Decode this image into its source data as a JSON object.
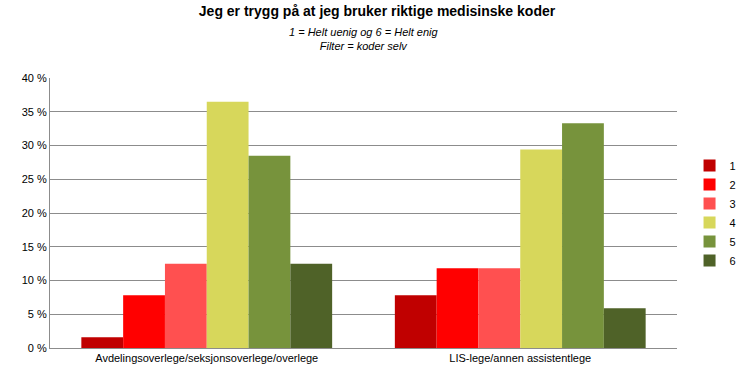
{
  "chart_data": {
    "type": "bar",
    "title": "Jeg er trygg på at jeg bruker riktige medisinske koder",
    "subtitle": [
      "1 = Helt uenig og 6 = Helt enig",
      "Filter = koder selv"
    ],
    "categories": [
      "Avdelingsoverlege/seksjonsoverlege/overlege",
      "LIS-lege/annen assistentlege"
    ],
    "series": [
      {
        "name": "1",
        "color": "#c00000",
        "values": [
          1.6,
          7.8
        ]
      },
      {
        "name": "2",
        "color": "#ff0000",
        "values": [
          7.8,
          11.8
        ]
      },
      {
        "name": "3",
        "color": "#ff5050",
        "values": [
          12.5,
          11.8
        ]
      },
      {
        "name": "4",
        "color": "#d7d75b",
        "values": [
          36.5,
          29.4
        ]
      },
      {
        "name": "5",
        "color": "#77933c",
        "values": [
          28.5,
          33.3
        ]
      },
      {
        "name": "6",
        "color": "#4f6228",
        "values": [
          12.5,
          5.9
        ]
      }
    ],
    "ylim": [
      0,
      40
    ],
    "yticks": [
      {
        "value": 0,
        "label": "0 %"
      },
      {
        "value": 5,
        "label": "5 %"
      },
      {
        "value": 10,
        "label": "10 %"
      },
      {
        "value": 15,
        "label": "15 %"
      },
      {
        "value": 20,
        "label": "20 %"
      },
      {
        "value": 25,
        "label": "25 %"
      },
      {
        "value": 30,
        "label": "30 %"
      },
      {
        "value": 35,
        "label": "35 %"
      },
      {
        "value": 40,
        "label": "40 %"
      }
    ],
    "grid": true,
    "legend": "right"
  }
}
